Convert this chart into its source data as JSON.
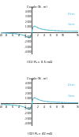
{
  "title1": "(31) R₁= 0.5 mΩ",
  "title2": "(32) R₁= 42 mΩ",
  "ylabel": "Couple (N . m)",
  "xlabel": "g (%)",
  "xlim": [
    -10,
    15
  ],
  "ylim": [
    -4500,
    5000
  ],
  "ytick_vals": [
    -4000,
    -3000,
    -2000,
    -1000,
    1000,
    2000,
    3000,
    4000
  ],
  "xtick_neg": [
    -10,
    -8,
    -6,
    -4,
    -2
  ],
  "xtick_pos": [
    2,
    4,
    6,
    8,
    10,
    15
  ],
  "curve_color": "#5bbfd4",
  "label_dem": "Dem",
  "label_com": "Com",
  "background": "#ffffff",
  "R2": 0.015,
  "X": 1.8,
  "scale": 4200
}
